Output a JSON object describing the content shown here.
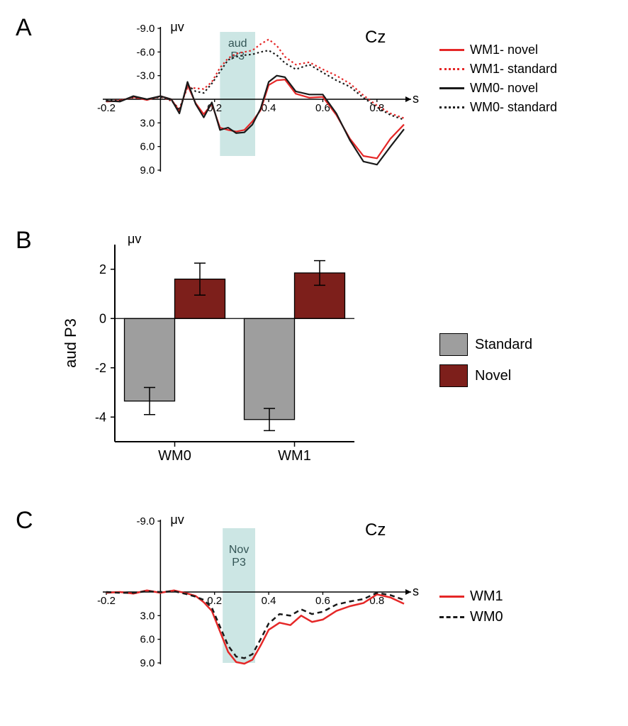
{
  "panelA": {
    "label": "A",
    "type": "line",
    "ylabel": "μv",
    "xlabel": "s",
    "electrode": "Cz",
    "highlight_label": "aud\nP3",
    "highlight_range": [
      0.22,
      0.35
    ],
    "highlight_color": "#c6e3e1",
    "xlim": [
      -0.2,
      0.9
    ],
    "ylim": [
      -9.0,
      9.0
    ],
    "yticks": [
      -9.0,
      -6.0,
      -3.0,
      3.0,
      6.0,
      9.0
    ],
    "xticks": [
      -0.2,
      0.2,
      0.4,
      0.6,
      0.8
    ],
    "background_color": "#ffffff",
    "series": [
      {
        "name": "WM1- novel",
        "color": "#e52727",
        "dash": "solid",
        "width": 2.2,
        "x": [
          -0.2,
          -0.15,
          -0.1,
          -0.05,
          0,
          0.04,
          0.07,
          0.1,
          0.13,
          0.16,
          0.19,
          0.22,
          0.25,
          0.28,
          0.31,
          0.34,
          0.37,
          0.4,
          0.43,
          0.46,
          0.5,
          0.55,
          0.6,
          0.65,
          0.7,
          0.75,
          0.8,
          0.85,
          0.9
        ],
        "y": [
          0.3,
          0.2,
          -0.3,
          0.1,
          -0.4,
          0.0,
          1.5,
          -1.8,
          0.5,
          1.9,
          0.6,
          3.6,
          3.9,
          4.1,
          3.9,
          2.8,
          1.4,
          -1.8,
          -2.4,
          -2.5,
          -0.7,
          -0.2,
          -0.3,
          2.0,
          5.0,
          7.2,
          7.5,
          5.0,
          3.2
        ]
      },
      {
        "name": "WM1- standard",
        "color": "#e52727",
        "dash": "dotted",
        "width": 2.2,
        "x": [
          -0.2,
          -0.15,
          -0.1,
          -0.05,
          0,
          0.04,
          0.07,
          0.1,
          0.13,
          0.16,
          0.19,
          0.22,
          0.25,
          0.28,
          0.31,
          0.34,
          0.37,
          0.4,
          0.43,
          0.46,
          0.5,
          0.55,
          0.6,
          0.65,
          0.7,
          0.75,
          0.8,
          0.85,
          0.9
        ],
        "y": [
          0.2,
          0.1,
          -0.2,
          0.0,
          -0.3,
          0.2,
          1.2,
          -1.5,
          -1.4,
          -1.3,
          -2.2,
          -4.0,
          -5.2,
          -5.8,
          -6.0,
          -6.2,
          -7.0,
          -7.6,
          -6.8,
          -5.4,
          -4.4,
          -4.7,
          -3.8,
          -3.0,
          -2.0,
          -0.5,
          0.8,
          1.8,
          2.4
        ]
      },
      {
        "name": "WM0- novel",
        "color": "#1a1a1a",
        "dash": "solid",
        "width": 2.2,
        "x": [
          -0.2,
          -0.15,
          -0.1,
          -0.05,
          0,
          0.04,
          0.07,
          0.1,
          0.13,
          0.16,
          0.19,
          0.22,
          0.25,
          0.28,
          0.31,
          0.34,
          0.37,
          0.4,
          0.43,
          0.46,
          0.5,
          0.55,
          0.6,
          0.65,
          0.7,
          0.75,
          0.8,
          0.85,
          0.9
        ],
        "y": [
          0.2,
          0.3,
          -0.4,
          0.0,
          -0.4,
          0.0,
          1.8,
          -2.2,
          0.6,
          2.3,
          0.4,
          3.9,
          3.6,
          4.3,
          4.2,
          3.2,
          1.2,
          -2.2,
          -3.0,
          -2.8,
          -1.0,
          -0.6,
          -0.6,
          1.8,
          5.2,
          7.9,
          8.3,
          6.0,
          3.8
        ]
      },
      {
        "name": "WM0- standard",
        "color": "#1a1a1a",
        "dash": "dotted",
        "width": 2.2,
        "x": [
          -0.2,
          -0.15,
          -0.1,
          -0.05,
          0,
          0.04,
          0.07,
          0.1,
          0.13,
          0.16,
          0.19,
          0.22,
          0.25,
          0.28,
          0.31,
          0.34,
          0.37,
          0.4,
          0.43,
          0.46,
          0.5,
          0.55,
          0.6,
          0.65,
          0.7,
          0.75,
          0.8,
          0.85,
          0.9
        ],
        "y": [
          0.1,
          0.2,
          -0.3,
          0.0,
          -0.3,
          0.1,
          1.4,
          -1.8,
          -1.0,
          -0.8,
          -2.0,
          -3.5,
          -5.0,
          -5.4,
          -5.6,
          -5.7,
          -6.0,
          -6.2,
          -5.6,
          -4.6,
          -3.8,
          -4.4,
          -3.4,
          -2.4,
          -1.6,
          -0.2,
          1.0,
          2.0,
          2.6
        ]
      }
    ],
    "legend": [
      "WM1- novel",
      "WM1- standard",
      "WM0- novel",
      "WM0- standard"
    ],
    "tick_fontsize": 15,
    "label_fontsize": 18
  },
  "panelB": {
    "label": "B",
    "type": "bar",
    "ylabel": "aud P3",
    "yunit": "μv",
    "categories": [
      "WM0",
      "WM1"
    ],
    "groups": [
      "Standard",
      "Novel"
    ],
    "values": [
      [
        -3.35,
        1.6
      ],
      [
        -4.1,
        1.85
      ]
    ],
    "errors": [
      [
        0.55,
        0.65
      ],
      [
        0.45,
        0.5
      ]
    ],
    "colors": {
      "Standard": "#9e9e9e",
      "Novel": "#7d1f1b"
    },
    "ylim": [
      -5,
      3
    ],
    "yticks": [
      -4,
      -2,
      0,
      2
    ],
    "bar_width": 0.42,
    "background_color": "#ffffff",
    "axis_color": "#000000",
    "tick_fontsize": 18,
    "label_fontsize": 22
  },
  "panelC": {
    "label": "C",
    "type": "line",
    "ylabel": "μv",
    "xlabel": "s",
    "electrode": "Cz",
    "highlight_label": "Nov\nP3",
    "highlight_range": [
      0.23,
      0.35
    ],
    "highlight_color": "#c6e3e1",
    "xlim": [
      -0.2,
      0.9
    ],
    "ylim": [
      -9.0,
      9.0
    ],
    "yticks": [
      -9.0,
      3.0,
      6.0,
      9.0
    ],
    "xticks": [
      -0.2,
      0.2,
      0.4,
      0.6,
      0.8
    ],
    "series": [
      {
        "name": "WM1",
        "color": "#e52727",
        "dash": "solid",
        "width": 2.5,
        "x": [
          -0.2,
          -0.15,
          -0.1,
          -0.05,
          0,
          0.05,
          0.1,
          0.13,
          0.16,
          0.19,
          0.22,
          0.25,
          0.28,
          0.31,
          0.34,
          0.37,
          0.4,
          0.44,
          0.48,
          0.52,
          0.56,
          0.6,
          0.65,
          0.7,
          0.75,
          0.8,
          0.85,
          0.9
        ],
        "y": [
          0.1,
          0.0,
          0.2,
          -0.2,
          0.1,
          -0.2,
          0.2,
          0.5,
          1.3,
          2.4,
          5.0,
          7.6,
          8.9,
          9.1,
          8.6,
          6.8,
          4.8,
          3.9,
          4.2,
          3.0,
          3.8,
          3.5,
          2.4,
          1.8,
          1.4,
          0.3,
          0.7,
          1.5
        ]
      },
      {
        "name": "WM0",
        "color": "#1a1a1a",
        "dash": "dashed",
        "width": 2.5,
        "x": [
          -0.2,
          -0.15,
          -0.1,
          -0.05,
          0,
          0.05,
          0.1,
          0.13,
          0.16,
          0.19,
          0.22,
          0.25,
          0.28,
          0.31,
          0.34,
          0.37,
          0.4,
          0.44,
          0.48,
          0.52,
          0.56,
          0.6,
          0.65,
          0.7,
          0.75,
          0.8,
          0.85,
          0.9
        ],
        "y": [
          0.0,
          0.1,
          0.1,
          -0.1,
          0.0,
          -0.1,
          0.3,
          0.6,
          1.0,
          2.0,
          4.4,
          6.8,
          8.2,
          8.4,
          7.9,
          6.0,
          4.0,
          2.8,
          3.0,
          2.2,
          2.8,
          2.5,
          1.6,
          1.2,
          0.9,
          0.1,
          0.4,
          1.0
        ]
      }
    ],
    "legend": [
      "WM1",
      "WM0"
    ],
    "tick_fontsize": 15,
    "label_fontsize": 18
  }
}
